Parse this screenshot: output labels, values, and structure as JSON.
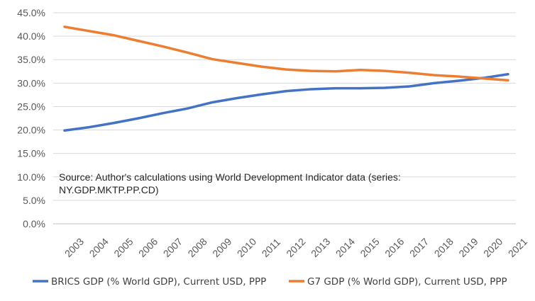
{
  "chart_data": {
    "type": "line",
    "categories": [
      "2003",
      "2004",
      "2005",
      "2006",
      "2007",
      "2008",
      "2009",
      "2010",
      "2011",
      "2012",
      "2013",
      "2014",
      "2015",
      "2016",
      "2017",
      "2018",
      "2019",
      "2020",
      "2021"
    ],
    "series": [
      {
        "name": "BRICS GDP (% World GDP), Current USD, PPP",
        "color": "#4472c4",
        "values": [
          19.9,
          20.6,
          21.5,
          22.5,
          23.6,
          24.6,
          25.9,
          26.8,
          27.6,
          28.3,
          28.7,
          28.9,
          28.9,
          29.0,
          29.3,
          30.0,
          30.5,
          31.1,
          31.9
        ]
      },
      {
        "name": "G7 GDP (% World GDP), Current USD, PPP",
        "color": "#ed7d31",
        "values": [
          42.0,
          41.1,
          40.2,
          39.0,
          37.8,
          36.5,
          35.1,
          34.3,
          33.5,
          32.9,
          32.6,
          32.5,
          32.8,
          32.6,
          32.2,
          31.7,
          31.4,
          31.0,
          30.6
        ]
      }
    ],
    "yticks": [
      "0.0%",
      "5.0%",
      "10.0%",
      "15.0%",
      "20.0%",
      "25.0%",
      "30.0%",
      "35.0%",
      "40.0%",
      "45.0%"
    ],
    "ylim": [
      0,
      45
    ],
    "grid": true,
    "legend_position": "bottom",
    "annotation": {
      "line1": "Source: Author's calculations using World Development Indicator data (series:",
      "line2": "NY.GDP.MKTP.PP.CD)"
    }
  }
}
